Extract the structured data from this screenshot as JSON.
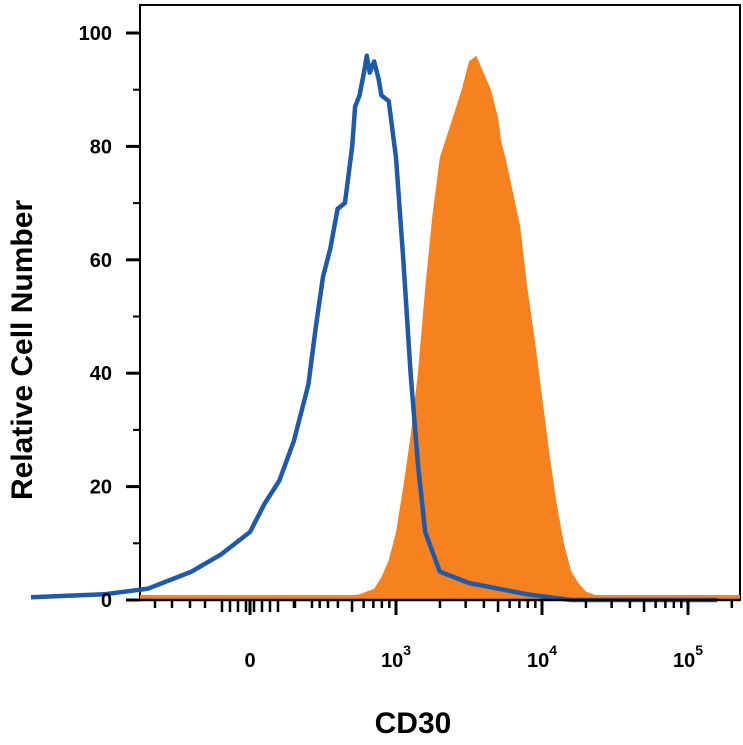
{
  "chart_data": {
    "type": "area",
    "xlabel": "CD30",
    "ylabel": "Relative Cell Number",
    "ylim": [
      0,
      100
    ],
    "y_ticks": [
      "0",
      "20",
      "40",
      "60",
      "80",
      "100"
    ],
    "x_axis_scale": "biexponential",
    "x_ticks": [
      {
        "label": "0",
        "exp": ""
      },
      {
        "label": "10",
        "exp": "3"
      },
      {
        "label": "10",
        "exp": "4"
      },
      {
        "label": "10",
        "exp": "5"
      }
    ],
    "grid": false,
    "series": [
      {
        "style": "filled",
        "color": "#F5821F",
        "x_log": [
          2.62,
          2.75,
          2.85,
          2.9,
          2.95,
          3.0,
          3.05,
          3.1,
          3.15,
          3.2,
          3.25,
          3.3,
          3.35,
          3.4,
          3.45,
          3.5,
          3.55,
          3.6,
          3.65,
          3.7,
          3.72,
          3.75,
          3.8,
          3.85,
          3.9,
          3.95,
          4.0,
          4.05,
          4.1,
          4.15,
          4.2,
          4.25,
          4.3,
          4.35,
          4.4,
          4.45,
          4.5,
          4.55,
          4.62,
          4.7,
          4.8,
          4.95
        ],
        "y": [
          0.5,
          1,
          2,
          4,
          7,
          12,
          20,
          29,
          40,
          55,
          68,
          78,
          82,
          86,
          90,
          95,
          96,
          93,
          90,
          85,
          81,
          78,
          72,
          66,
          55,
          46,
          36,
          26,
          17,
          10,
          5,
          3,
          1.5,
          1,
          0.5,
          0,
          0,
          0,
          0,
          0,
          0,
          0
        ]
      },
      {
        "style": "line",
        "color": "#1F5AAA",
        "x_log": [
          0.5,
          1.0,
          1.3,
          1.6,
          1.8,
          2.0,
          2.1,
          2.2,
          2.3,
          2.4,
          2.45,
          2.5,
          2.55,
          2.6,
          2.65,
          2.7,
          2.72,
          2.75,
          2.78,
          2.8,
          2.82,
          2.85,
          2.88,
          2.9,
          2.95,
          3.0,
          3.05,
          3.1,
          3.15,
          3.2,
          3.3,
          3.5,
          3.7,
          3.9,
          4.2,
          4.5,
          4.8,
          5.2
        ],
        "y": [
          0.5,
          1,
          2,
          5,
          8,
          12,
          17,
          21,
          28,
          38,
          48,
          57,
          62,
          69,
          70,
          80,
          87,
          89,
          93,
          96,
          93,
          95,
          92,
          89,
          88,
          78,
          60,
          40,
          24,
          12,
          5,
          3,
          2,
          1,
          0,
          0,
          0,
          0
        ]
      }
    ]
  }
}
